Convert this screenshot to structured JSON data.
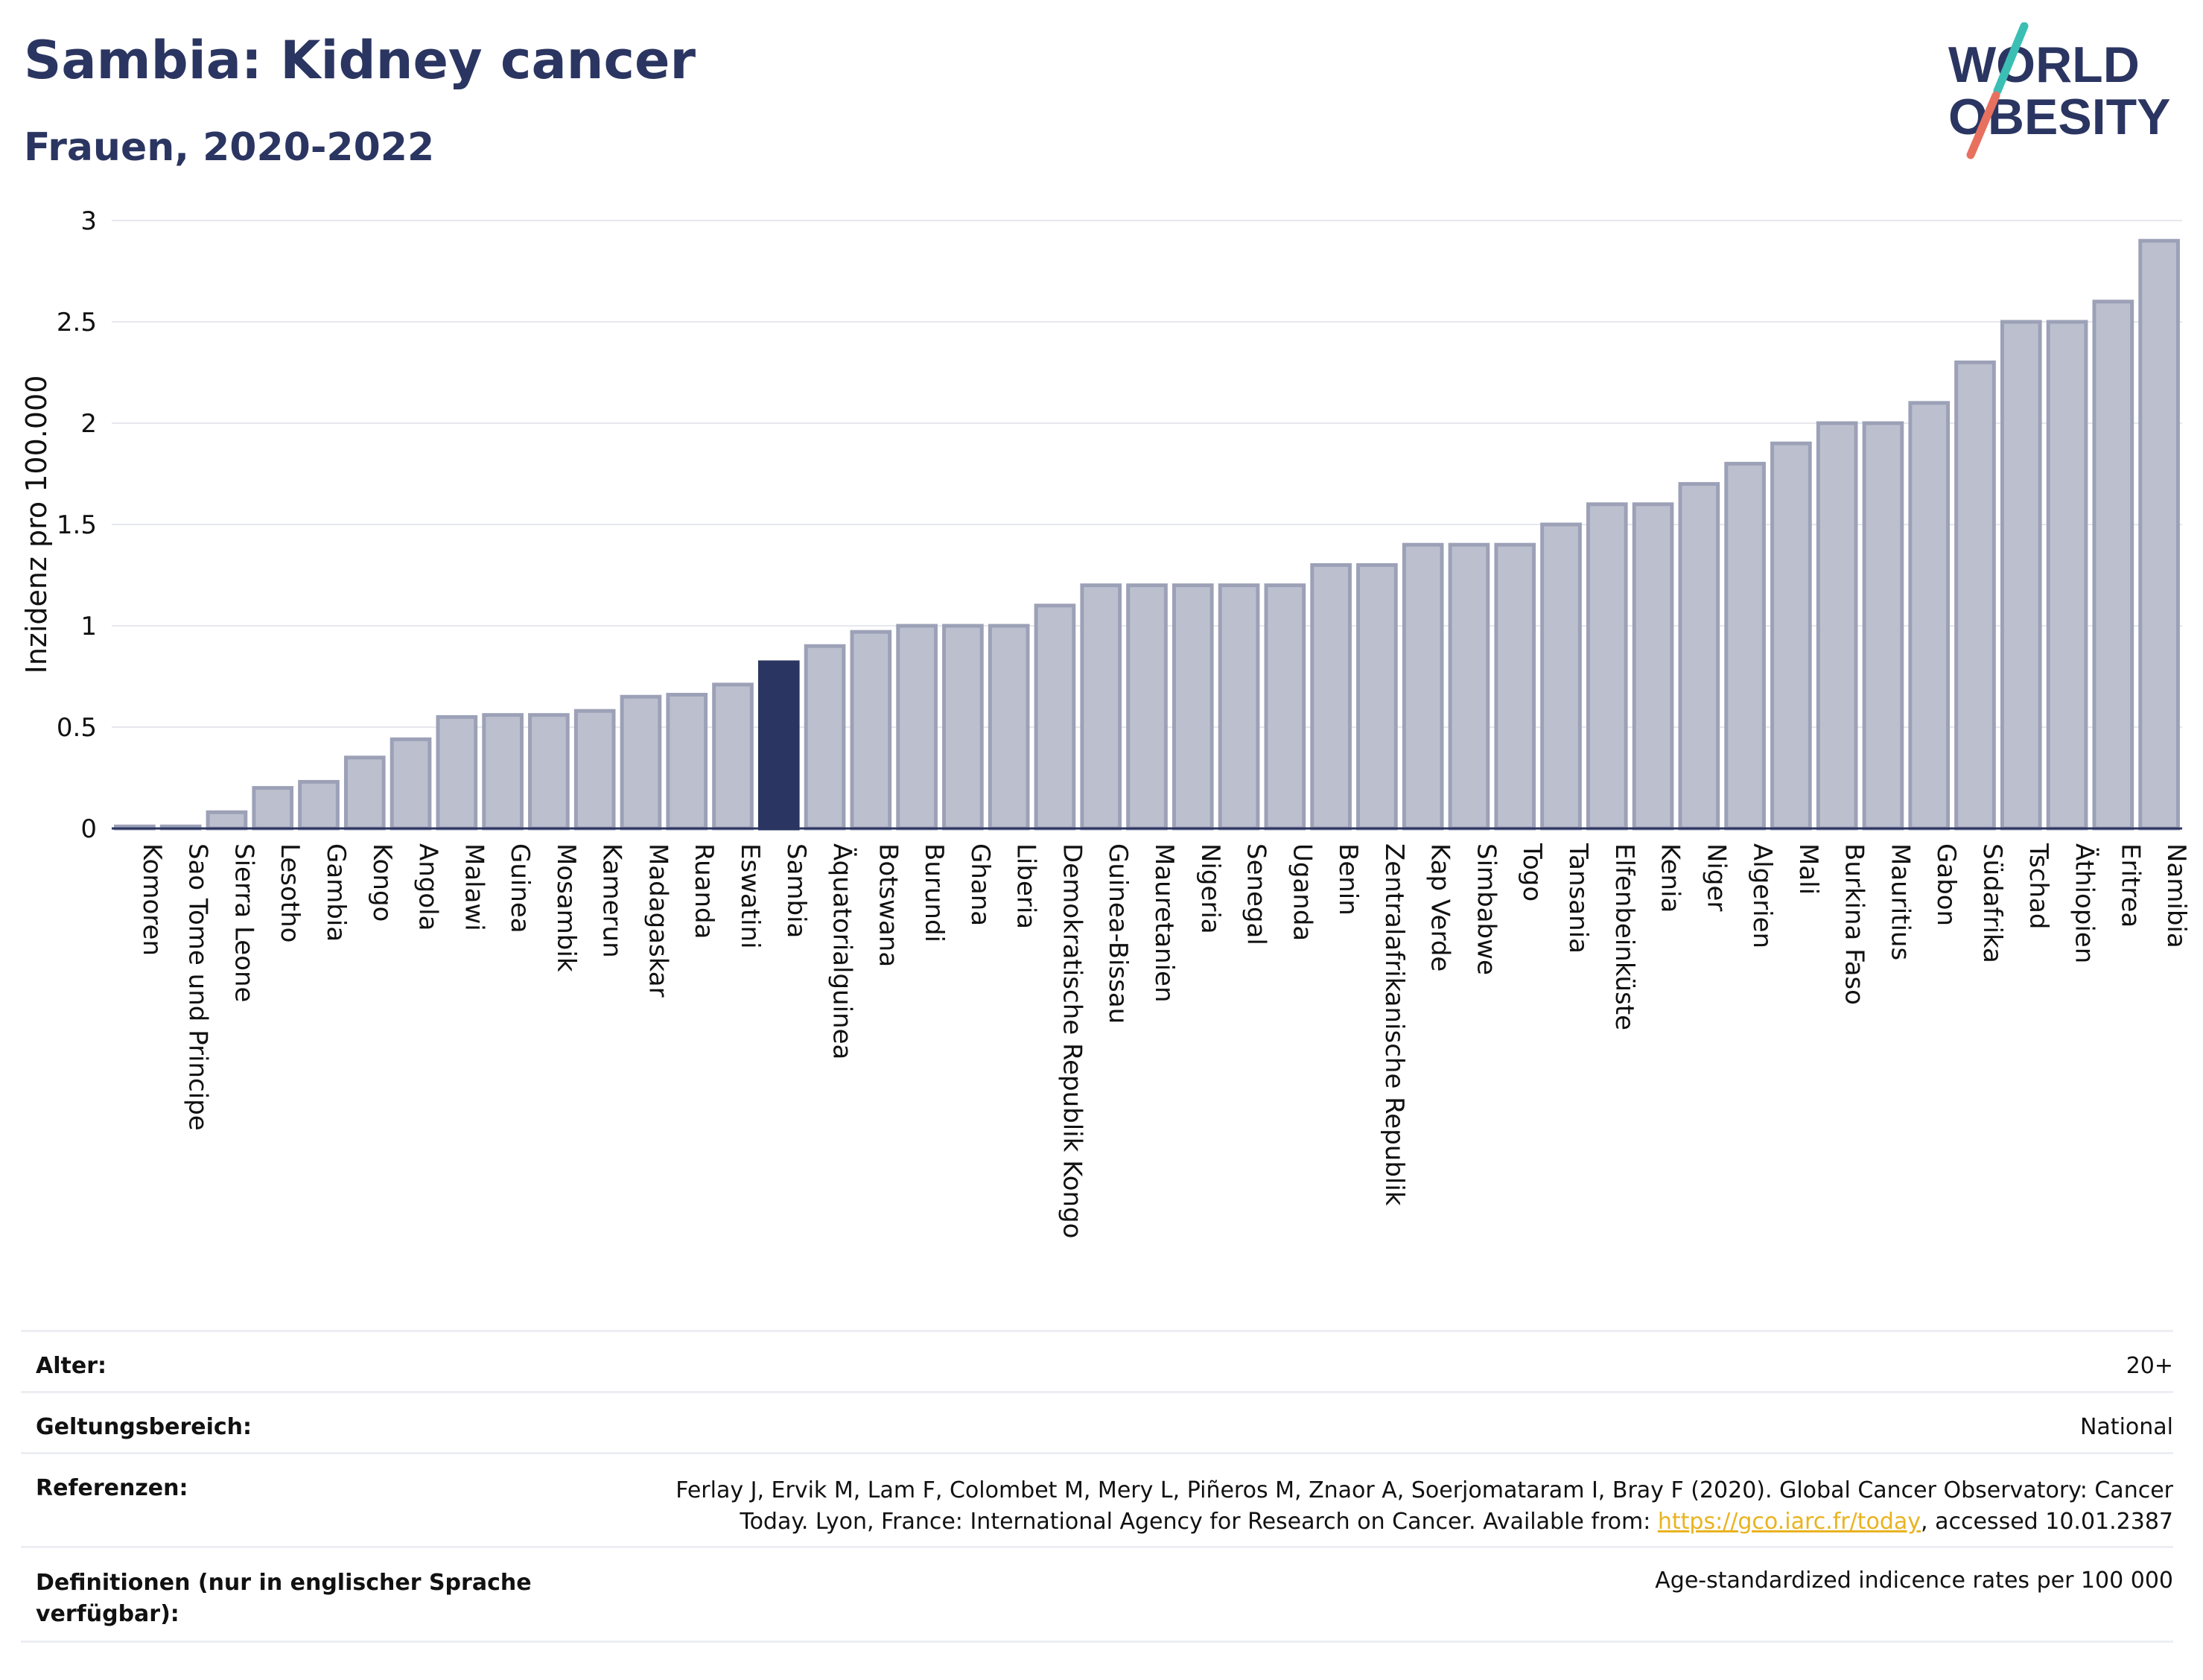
{
  "header": {
    "title": "Sambia: Kidney cancer",
    "subtitle": "Frauen, 2020-2022"
  },
  "logo": {
    "line1": "WORLD",
    "line2": "OBESITY",
    "colors": {
      "text": "#2b3561",
      "slash_top": "#3bbfb4",
      "slash_bottom": "#e8705f"
    }
  },
  "chart_data": {
    "type": "bar",
    "ylabel": "Inzidenz pro 100.000",
    "ylim": [
      0,
      3
    ],
    "yticks": [
      0,
      0.5,
      1,
      1.5,
      2,
      2.5,
      3
    ],
    "grid": true,
    "highlight": "Sambia",
    "colors": {
      "bar": "#bcc0ce",
      "bar_border": "#9ca1b7",
      "highlight": "#2b3561",
      "grid": "#e6e8ee"
    },
    "categories": [
      "Komoren",
      "Sao Tome und Principe",
      "Sierra Leone",
      "Lesotho",
      "Gambia",
      "Kongo",
      "Angola",
      "Malawi",
      "Guinea",
      "Mosambik",
      "Kamerun",
      "Madagaskar",
      "Ruanda",
      "Eswatini",
      "Sambia",
      "Äquatorialguinea",
      "Botswana",
      "Burundi",
      "Ghana",
      "Liberia",
      "Demokratische Republik Kongo",
      "Guinea-Bissau",
      "Mauretanien",
      "Nigeria",
      "Senegal",
      "Uganda",
      "Benin",
      "Zentralafrikanische Republik",
      "Kap Verde",
      "Simbabwe",
      "Togo",
      "Tansania",
      "Elfenbeinküste",
      "Kenia",
      "Niger",
      "Algerien",
      "Mali",
      "Burkina Faso",
      "Mauritius",
      "Gabon",
      "Südafrika",
      "Tschad",
      "Äthiopien",
      "Eritrea",
      "Namibia"
    ],
    "values": [
      0.01,
      0.01,
      0.08,
      0.2,
      0.23,
      0.35,
      0.44,
      0.55,
      0.56,
      0.56,
      0.58,
      0.65,
      0.66,
      0.71,
      0.82,
      0.9,
      0.97,
      1.0,
      1.0,
      1.0,
      1.1,
      1.2,
      1.2,
      1.2,
      1.2,
      1.2,
      1.3,
      1.3,
      1.4,
      1.4,
      1.4,
      1.5,
      1.6,
      1.6,
      1.7,
      1.8,
      1.9,
      2.0,
      2.0,
      2.1,
      2.3,
      2.5,
      2.5,
      2.6,
      2.9
    ]
  },
  "meta": {
    "age_label": "Alter:",
    "age_value": "20+",
    "scope_label": "Geltungsbereich:",
    "scope_value": "National",
    "ref_label": "Referenzen:",
    "ref_line1": "Ferlay J, Ervik M, Lam F, Colombet M, Mery L, Piñeros M, Znaor A, Soerjomataram I, Bray F (2020). Global Cancer Observatory: Cancer",
    "ref_line2_pre": "Today. Lyon, France: International Agency for Research on Cancer. Available from: ",
    "ref_link": "https://gco.iarc.fr/today",
    "ref_line2_post": ", accessed 10.01.2387",
    "def_label_1": "Definitionen (nur in englischer Sprache",
    "def_label_2": "verfügbar):",
    "def_value": "Age-standardized indicence rates per 100 000"
  }
}
